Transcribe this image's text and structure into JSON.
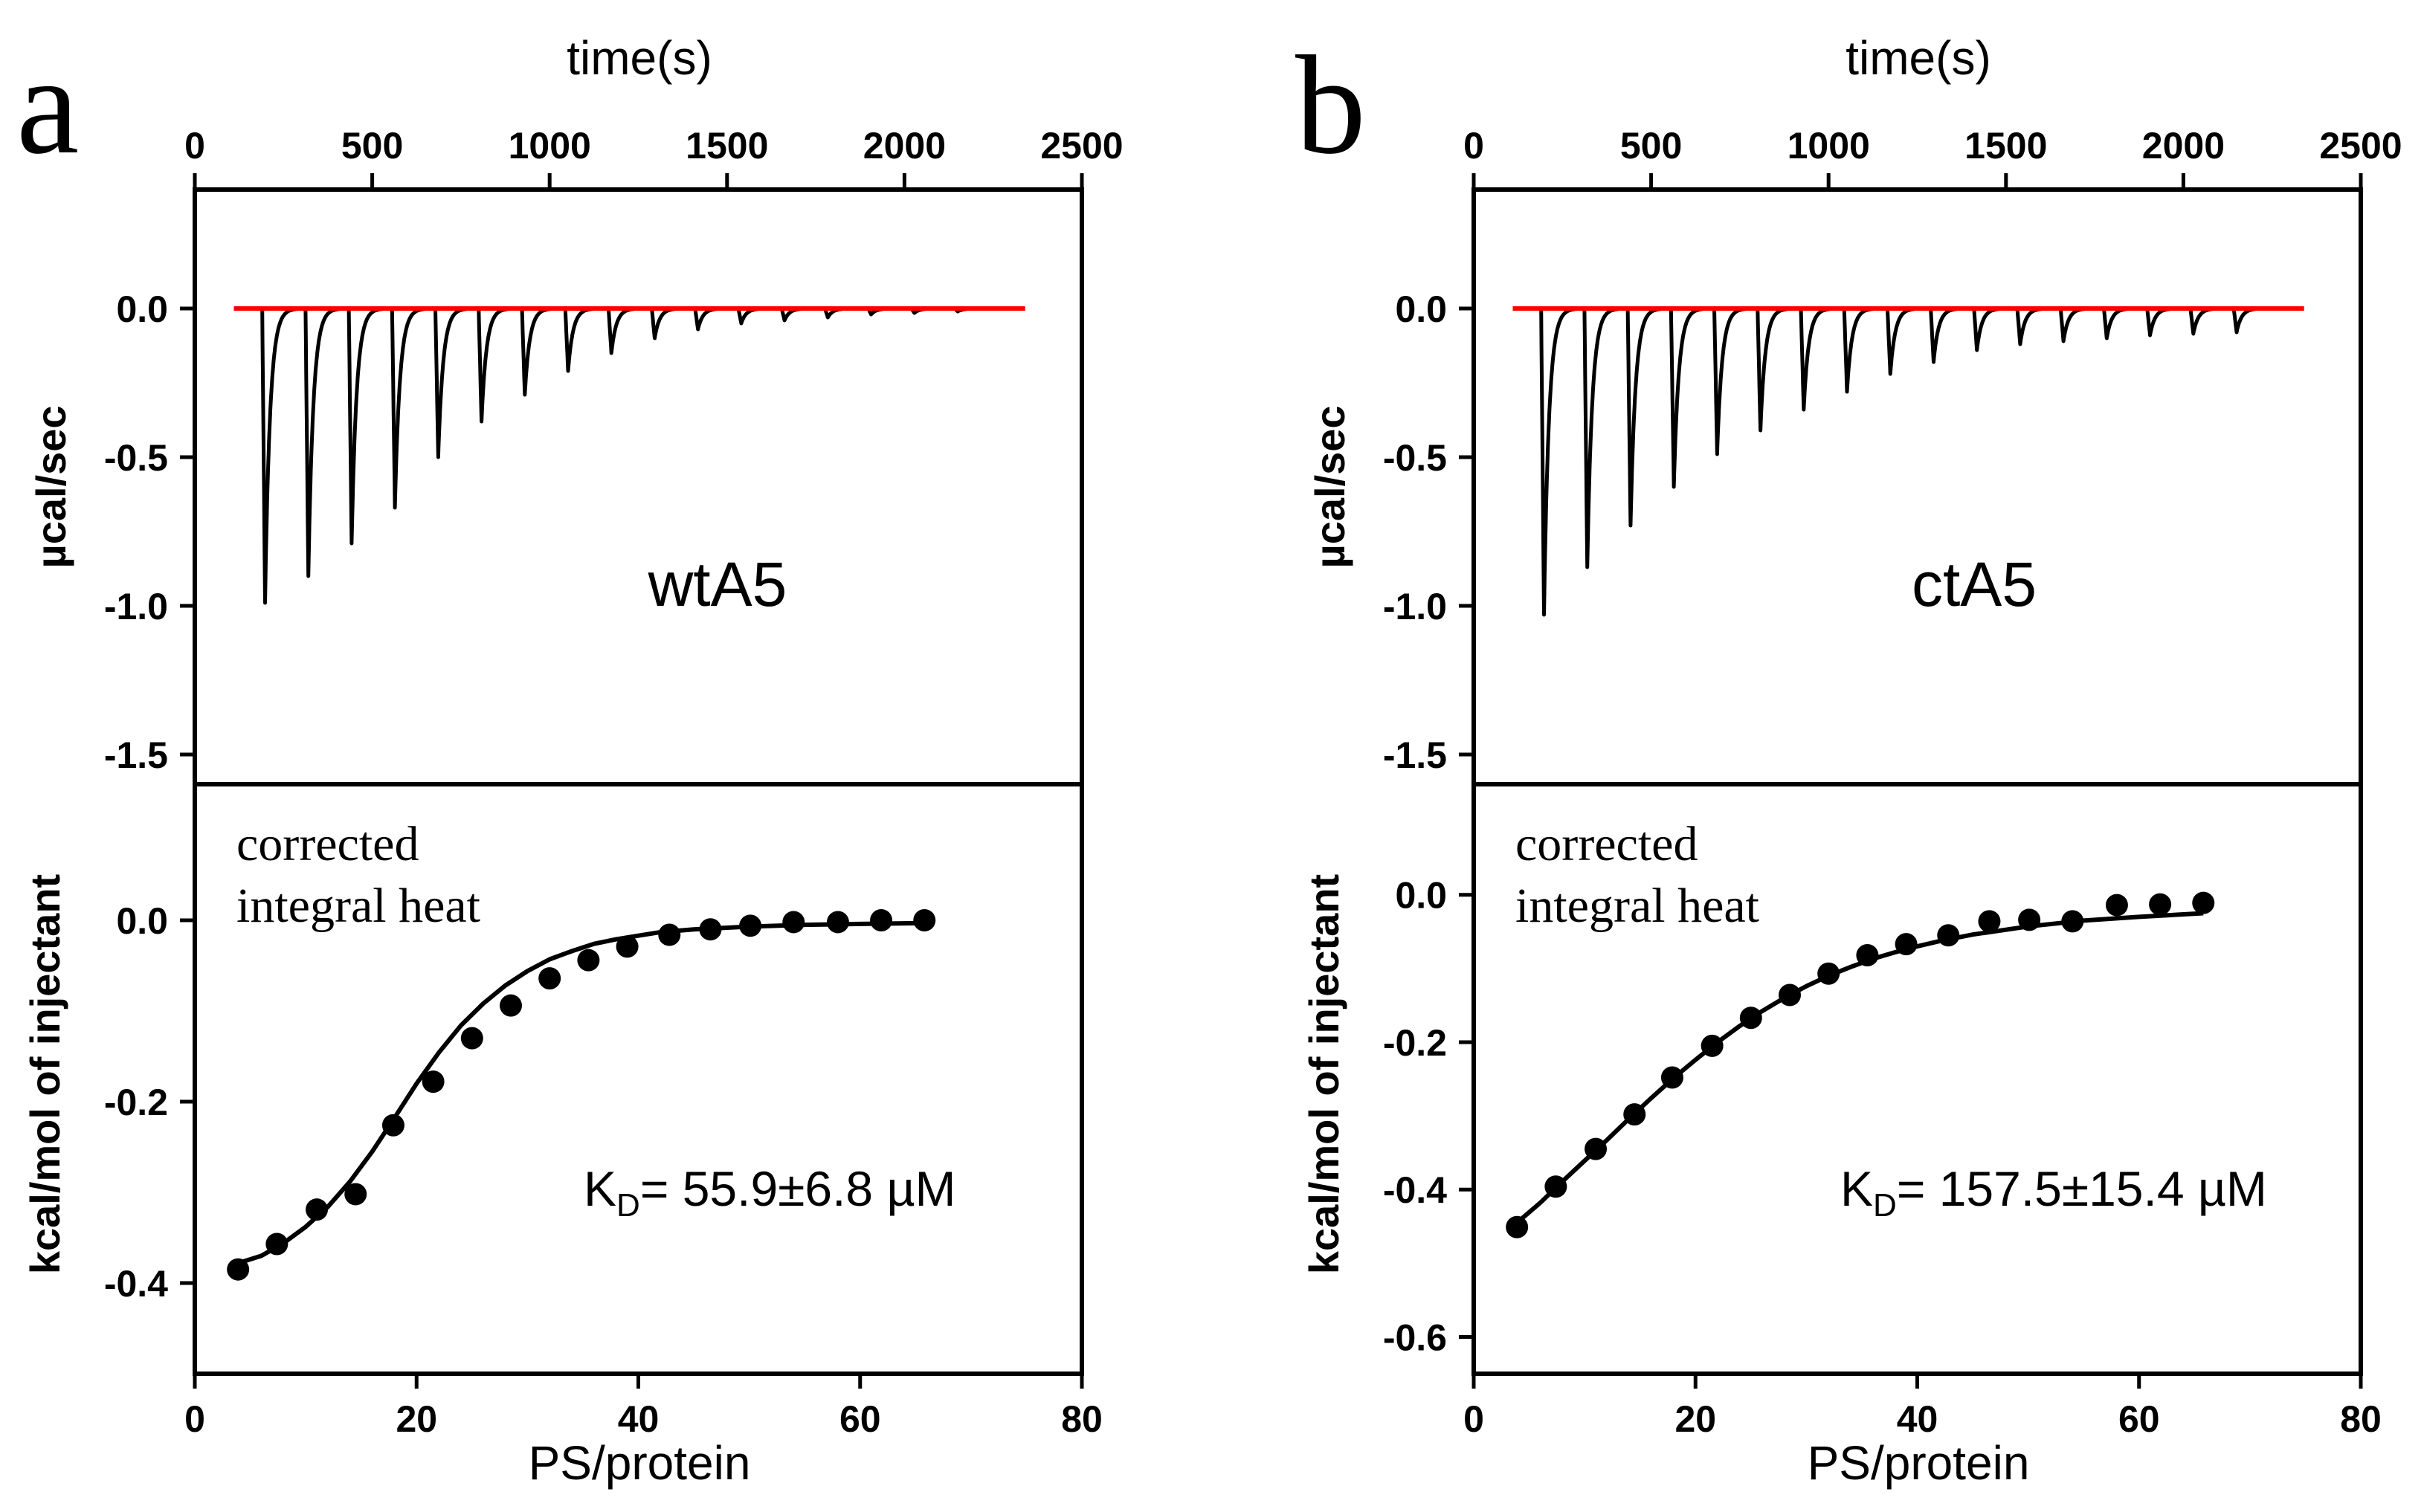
{
  "figure": {
    "x_label_top": "time(s)",
    "x_label_bottom": "PS/protein",
    "y_label_top": "µcal/sec",
    "y_label_bottom": "kcal/mol of injectant",
    "annotation_line1": "corrected",
    "annotation_line2": "integral heat",
    "colors": {
      "trace": "#000000",
      "baseline": "#ff0000",
      "fit": "#000000",
      "points": "#000000"
    }
  },
  "chart_data": [
    {
      "panel": "a",
      "sample": "wtA5",
      "kd_prefix": "K",
      "kd_subscript": "D",
      "kd_value": "= 55.9±6.8 µM",
      "thermogram": {
        "type": "line",
        "xlabel": "time(s)",
        "ylabel": "µcal/sec",
        "xlim": [
          0,
          2500
        ],
        "ylim": [
          -1.6,
          0.4
        ],
        "x_ticks": [
          0,
          500,
          1000,
          1500,
          2000,
          2500
        ],
        "y_ticks": [
          0.0,
          -0.5,
          -1.0,
          -1.5
        ],
        "baseline_y": 0.0,
        "trace_start": 110,
        "trace_end": 2340,
        "injection_times": [
          190,
          312,
          434,
          556,
          678,
          800,
          922,
          1044,
          1166,
          1288,
          1410,
          1532,
          1654,
          1776,
          1898,
          2020,
          2142
        ],
        "peak_minima": [
          -0.99,
          -0.9,
          -0.79,
          -0.67,
          -0.5,
          -0.38,
          -0.29,
          -0.21,
          -0.15,
          -0.1,
          -0.07,
          -0.05,
          -0.04,
          -0.03,
          -0.02,
          -0.015,
          -0.01
        ]
      },
      "binding": {
        "type": "scatter",
        "xlabel": "PS/protein",
        "ylabel": "kcal/mol of injectant",
        "xlim": [
          0,
          80
        ],
        "ylim": [
          -0.5,
          0.15
        ],
        "x_ticks": [
          0,
          20,
          40,
          60,
          80
        ],
        "y_ticks": [
          0.0,
          -0.2,
          -0.4
        ],
        "x": [
          3.9,
          7.4,
          11.0,
          14.5,
          17.9,
          21.5,
          25.0,
          28.5,
          32.0,
          35.5,
          39.0,
          42.8,
          46.5,
          50.1,
          54.0,
          58.0,
          61.9,
          65.8
        ],
        "y": [
          -0.385,
          -0.357,
          -0.319,
          -0.302,
          -0.226,
          -0.178,
          -0.13,
          -0.094,
          -0.064,
          -0.044,
          -0.029,
          -0.016,
          -0.01,
          -0.006,
          -0.002,
          -0.002,
          0.0,
          0.0
        ],
        "fit_x": [
          3.9,
          6,
          8,
          10,
          12,
          14,
          16,
          18,
          20,
          22,
          24,
          26,
          28,
          30,
          32,
          34,
          36,
          38,
          40,
          42,
          45,
          50,
          55,
          60,
          65.8
        ],
        "fit_y": [
          -0.378,
          -0.37,
          -0.356,
          -0.338,
          -0.316,
          -0.288,
          -0.255,
          -0.218,
          -0.18,
          -0.146,
          -0.116,
          -0.092,
          -0.072,
          -0.056,
          -0.043,
          -0.034,
          -0.026,
          -0.021,
          -0.017,
          -0.013,
          -0.01,
          -0.007,
          -0.005,
          -0.004,
          -0.003
        ]
      }
    },
    {
      "panel": "b",
      "sample": "ctA5",
      "kd_prefix": "K",
      "kd_subscript": "D",
      "kd_value": "= 157.5±15.4 µM",
      "thermogram": {
        "type": "line",
        "xlabel": "time(s)",
        "ylabel": "µcal/sec",
        "xlim": [
          0,
          2500
        ],
        "ylim": [
          -1.6,
          0.4
        ],
        "x_ticks": [
          0,
          500,
          1000,
          1500,
          2000,
          2500
        ],
        "y_ticks": [
          0.0,
          -0.5,
          -1.0,
          -1.5
        ],
        "baseline_y": 0.0,
        "trace_start": 110,
        "trace_end": 2340,
        "injection_times": [
          190,
          312,
          434,
          556,
          678,
          800,
          922,
          1044,
          1166,
          1288,
          1410,
          1532,
          1654,
          1776,
          1898,
          2020,
          2142
        ],
        "peak_minima": [
          -1.03,
          -0.87,
          -0.73,
          -0.6,
          -0.49,
          -0.41,
          -0.34,
          -0.28,
          -0.22,
          -0.18,
          -0.14,
          -0.12,
          -0.11,
          -0.1,
          -0.09,
          -0.085,
          -0.08
        ]
      },
      "binding": {
        "type": "scatter",
        "xlabel": "PS/protein",
        "ylabel": "kcal/mol of injectant",
        "xlim": [
          0,
          80
        ],
        "ylim": [
          -0.65,
          0.15
        ],
        "x_ticks": [
          0,
          20,
          40,
          60,
          80
        ],
        "y_ticks": [
          0.0,
          -0.2,
          -0.4,
          -0.6
        ],
        "x": [
          3.9,
          7.4,
          11.0,
          14.5,
          17.9,
          21.5,
          25.0,
          28.5,
          32.0,
          35.5,
          39.0,
          42.8,
          46.5,
          50.1,
          54.0,
          58.0,
          61.9,
          65.8
        ],
        "y": [
          -0.451,
          -0.396,
          -0.345,
          -0.298,
          -0.248,
          -0.205,
          -0.167,
          -0.136,
          -0.107,
          -0.082,
          -0.067,
          -0.055,
          -0.036,
          -0.034,
          -0.036,
          -0.014,
          -0.013,
          -0.011
        ],
        "fit_x": [
          3.9,
          6,
          8,
          10,
          12,
          14,
          16,
          18,
          20,
          22,
          24,
          26,
          28,
          30,
          32,
          34,
          36,
          38,
          40,
          42,
          45,
          50,
          55,
          60,
          65.8
        ],
        "fit_y": [
          -0.445,
          -0.418,
          -0.389,
          -0.361,
          -0.333,
          -0.304,
          -0.276,
          -0.249,
          -0.224,
          -0.2,
          -0.178,
          -0.158,
          -0.14,
          -0.124,
          -0.11,
          -0.098,
          -0.087,
          -0.078,
          -0.07,
          -0.063,
          -0.054,
          -0.043,
          -0.035,
          -0.03,
          -0.025
        ]
      }
    }
  ]
}
